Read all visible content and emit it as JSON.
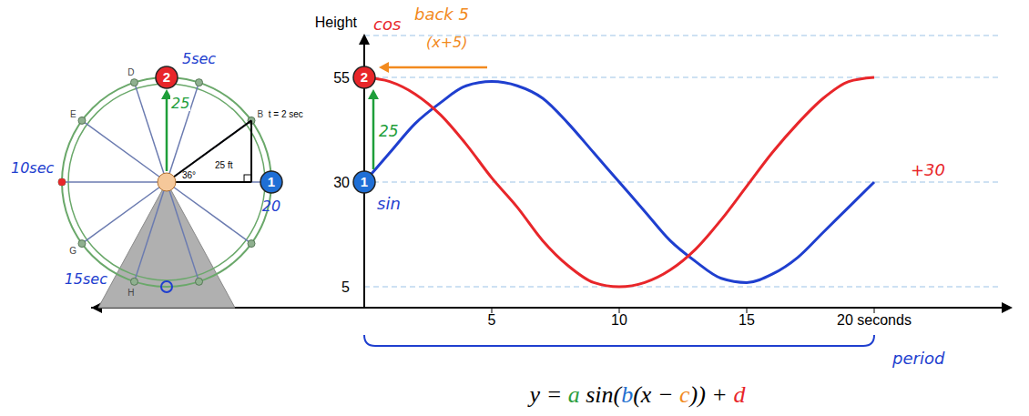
{
  "chart_data": {
    "type": "line",
    "y_label": "Height",
    "x": [
      0,
      1,
      2,
      3,
      4,
      5,
      6,
      7,
      8,
      9,
      10,
      11,
      12,
      13,
      14,
      15,
      16,
      17,
      18,
      19,
      20
    ],
    "series": [
      {
        "name": "sin",
        "color": "#1f3fcf",
        "values": [
          30,
          37,
          44,
          49,
          53,
          54,
          53,
          50,
          44,
          37,
          30,
          23,
          16,
          11,
          7,
          6,
          8,
          12,
          18,
          24,
          30
        ]
      },
      {
        "name": "cos",
        "color": "#e8262a",
        "values": [
          55,
          54,
          51,
          46,
          39,
          31,
          24,
          16,
          10,
          6,
          5,
          6,
          9,
          14,
          21,
          29,
          37,
          44,
          50,
          54,
          55
        ]
      }
    ],
    "xlim": [
      0,
      25
    ],
    "xticks": [
      5,
      10,
      15,
      {
        "value": 20,
        "label": "20 seconds"
      }
    ],
    "ylim": [
      0,
      65
    ],
    "yticks": [
      5,
      30,
      55
    ],
    "grid": true,
    "points": [
      {
        "label": "2",
        "x": 0,
        "y": 55,
        "color": "#e8262a"
      },
      {
        "label": "1",
        "x": 0,
        "y": 30,
        "color": "#1f6fd6"
      }
    ],
    "annotations": {
      "shift": [
        "back 5",
        "(x+5)"
      ],
      "amplitude": "25",
      "midline": "+30",
      "period": "period"
    }
  },
  "diagram": {
    "spoke_labels": [
      "B",
      "D",
      "E",
      "G",
      "H"
    ],
    "b_time": "t = 2 sec",
    "radius": "25 ft",
    "angle": "36°",
    "hub_to_top": "25",
    "times": [
      "5sec",
      "10sec",
      "15sec",
      "20"
    ]
  },
  "formula": [
    {
      "text": "y = ",
      "color": "#000000"
    },
    {
      "text": "a",
      "color": "#2e9e3e"
    },
    {
      "text": " sin(",
      "color": "#000000"
    },
    {
      "text": "b",
      "color": "#1f6fcf"
    },
    {
      "text": "(x − ",
      "color": "#000000"
    },
    {
      "text": "c",
      "color": "#f28a1e"
    },
    {
      "text": ")) + ",
      "color": "#000000"
    },
    {
      "text": "d",
      "color": "#e8262a"
    }
  ]
}
